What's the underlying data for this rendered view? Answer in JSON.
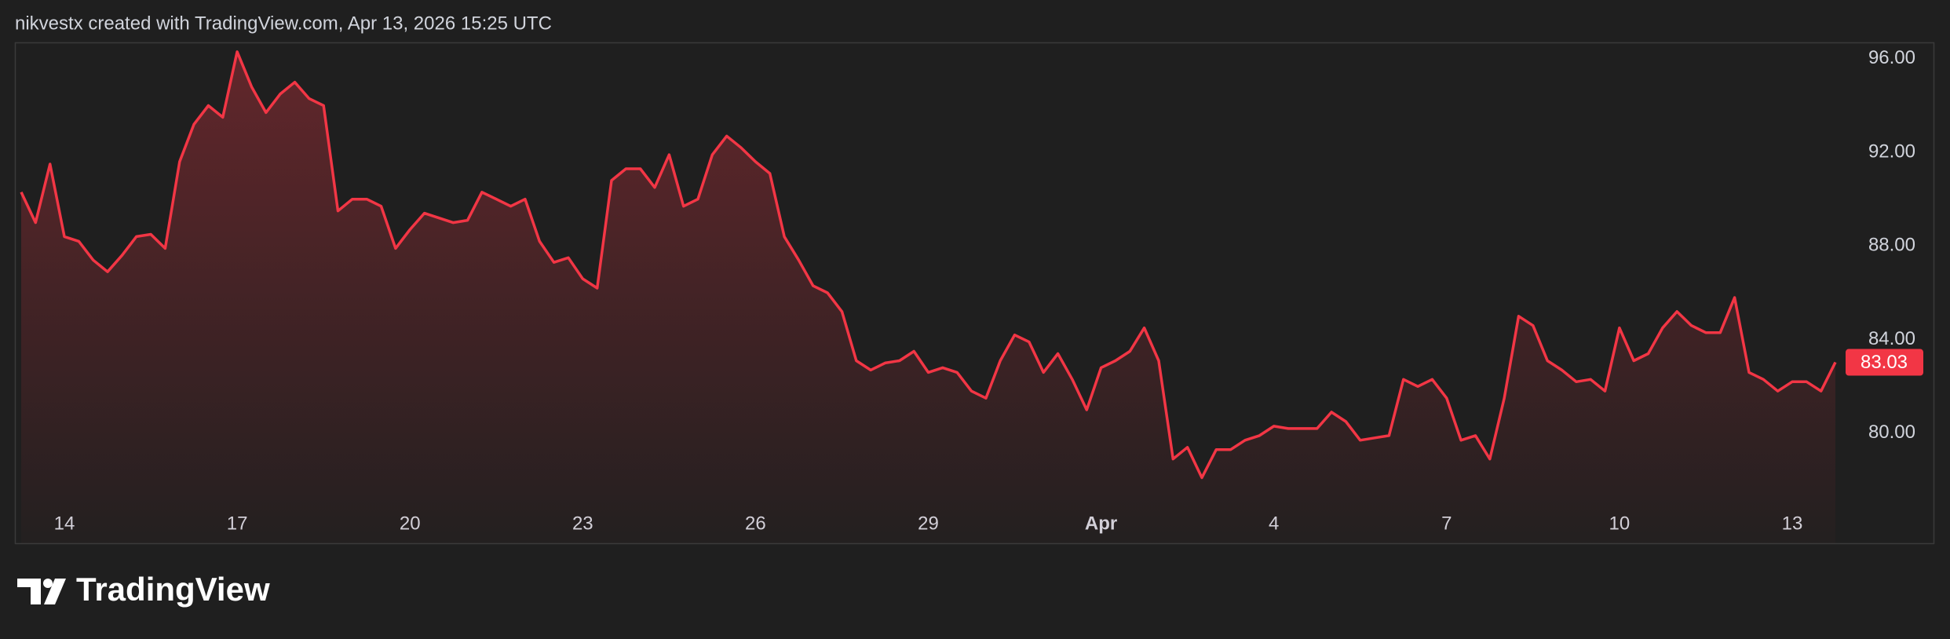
{
  "header": {
    "text": "nikvestx created with TradingView.com, Apr 13, 2026 15:25 UTC"
  },
  "logo": {
    "text": "TradingView"
  },
  "chart_data": {
    "type": "area",
    "color": "#f23645",
    "categories": [
      null,
      null,
      null,
      "14",
      null,
      null,
      null,
      null,
      null,
      null,
      null,
      null,
      null,
      null,
      null,
      "17",
      null,
      null,
      null,
      null,
      null,
      null,
      null,
      null,
      null,
      null,
      null,
      "20",
      null,
      null,
      null,
      null,
      null,
      null,
      null,
      null,
      null,
      null,
      null,
      "23",
      null,
      null,
      null,
      null,
      null,
      null,
      null,
      null,
      null,
      null,
      null,
      "26",
      null,
      null,
      null,
      null,
      null,
      null,
      null,
      null,
      null,
      null,
      null,
      "29",
      null,
      null,
      null,
      null,
      null,
      null,
      null,
      null,
      null,
      null,
      null,
      "Apr",
      null,
      null,
      null,
      null,
      null,
      null,
      null,
      null,
      null,
      null,
      null,
      "4",
      null,
      null,
      null,
      null,
      null,
      null,
      null,
      null,
      null,
      null,
      null,
      "7",
      null,
      null,
      null,
      null,
      null,
      null,
      null,
      null,
      null,
      null,
      null,
      "10",
      null,
      null,
      null,
      null,
      null,
      null,
      null,
      null,
      null,
      null,
      null,
      "13",
      null,
      null,
      null
    ],
    "values": [
      90.3,
      89.0,
      91.5,
      88.4,
      88.2,
      87.4,
      86.9,
      87.6,
      88.4,
      88.5,
      87.9,
      91.6,
      93.2,
      94.0,
      93.5,
      96.3,
      94.8,
      93.7,
      94.5,
      95.0,
      94.3,
      94.0,
      89.5,
      90.0,
      90.0,
      89.7,
      87.9,
      88.7,
      89.4,
      89.2,
      89.0,
      89.1,
      90.3,
      90.0,
      89.7,
      90.0,
      88.2,
      87.3,
      87.5,
      86.6,
      86.2,
      90.8,
      91.3,
      91.3,
      90.5,
      91.9,
      89.7,
      90.0,
      91.9,
      92.7,
      92.2,
      91.6,
      91.1,
      88.4,
      87.4,
      86.3,
      86.0,
      85.2,
      83.1,
      82.7,
      83.0,
      83.1,
      83.5,
      82.6,
      82.8,
      82.6,
      81.8,
      81.5,
      83.1,
      84.2,
      83.9,
      82.6,
      83.4,
      82.3,
      81.0,
      82.8,
      83.1,
      83.5,
      84.5,
      83.1,
      78.9,
      79.4,
      78.1,
      79.3,
      79.3,
      79.7,
      79.9,
      80.3,
      80.2,
      80.2,
      80.2,
      80.9,
      80.5,
      79.7,
      79.8,
      79.9,
      82.3,
      82.0,
      82.3,
      81.5,
      79.7,
      79.9,
      78.9,
      81.5,
      85.0,
      84.6,
      83.1,
      82.7,
      82.2,
      82.3,
      81.8,
      84.5,
      83.1,
      83.4,
      84.5,
      85.2,
      84.6,
      84.3,
      84.3,
      85.8,
      82.6,
      82.3,
      81.8,
      82.2,
      82.2,
      81.8,
      83.03
    ],
    "last_price_label": "83.03",
    "ylim": [
      75.3,
      96.7
    ],
    "yticks": [
      {
        "value": 80,
        "label": "80.00"
      },
      {
        "value": 84,
        "label": "84.00"
      },
      {
        "value": 88,
        "label": "88.00"
      },
      {
        "value": 92,
        "label": "92.00"
      },
      {
        "value": 96,
        "label": "96.00"
      }
    ]
  }
}
